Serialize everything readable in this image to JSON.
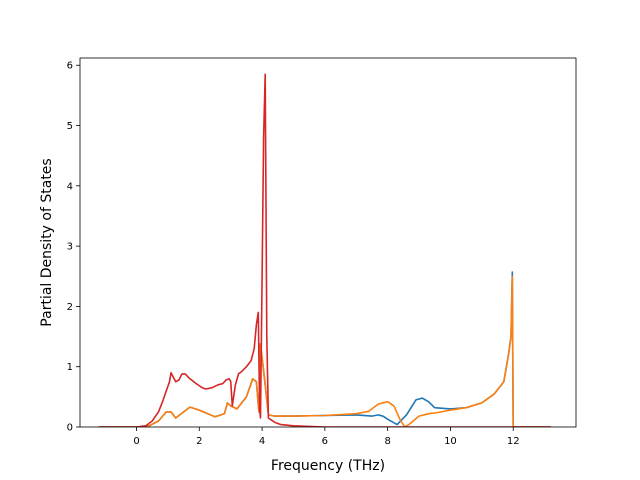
{
  "chart_data": {
    "type": "line",
    "title": "",
    "xlabel": "Frequency (THz)",
    "ylabel": "Partial Density of States",
    "xlim": [
      -1.8,
      14.0
    ],
    "ylim": [
      0,
      6.12
    ],
    "xticks": [
      0,
      2,
      4,
      6,
      8,
      10,
      12
    ],
    "yticks": [
      0,
      1,
      2,
      3,
      4,
      5,
      6
    ],
    "xtick_labels": [
      "0",
      "2",
      "4",
      "6",
      "8",
      "10",
      "12"
    ],
    "ytick_labels": [
      "0",
      "1",
      "2",
      "3",
      "4",
      "5",
      "6"
    ],
    "grid": false,
    "legend": "none",
    "series": [
      {
        "color": "#1f77b4",
        "x": [
          -1.2,
          0.0,
          0.4,
          0.7,
          0.95,
          1.1,
          1.25,
          1.5,
          1.7,
          2.0,
          2.5,
          2.8,
          2.9,
          3.0,
          3.2,
          3.5,
          3.7,
          3.82,
          3.9,
          3.95,
          4.1,
          4.2,
          4.4,
          5.0,
          6.0,
          7.0,
          7.5,
          7.7,
          7.85,
          8.0,
          8.3,
          8.6,
          8.9,
          9.1,
          9.3,
          9.5,
          10.0,
          10.5,
          11.0,
          11.4,
          11.7,
          11.85,
          11.93,
          11.97,
          12.0,
          13.2
        ],
        "y": [
          0,
          0,
          0.02,
          0.1,
          0.25,
          0.25,
          0.15,
          0.25,
          0.33,
          0.28,
          0.17,
          0.22,
          0.4,
          0.35,
          0.3,
          0.5,
          0.8,
          0.75,
          0.25,
          1.38,
          0.7,
          0.2,
          0.18,
          0.18,
          0.19,
          0.2,
          0.18,
          0.2,
          0.18,
          0.13,
          0.04,
          0.2,
          0.45,
          0.48,
          0.42,
          0.32,
          0.3,
          0.32,
          0.4,
          0.55,
          0.75,
          1.2,
          1.5,
          2.57,
          0.0,
          0.0
        ]
      },
      {
        "color": "#ff7f0e",
        "x": [
          -1.2,
          0.0,
          0.4,
          0.7,
          0.95,
          1.1,
          1.25,
          1.5,
          1.7,
          2.0,
          2.5,
          2.8,
          2.9,
          3.0,
          3.2,
          3.5,
          3.7,
          3.82,
          3.9,
          3.95,
          4.1,
          4.2,
          4.4,
          5.0,
          6.0,
          7.0,
          7.4,
          7.7,
          8.0,
          8.2,
          8.4,
          8.55,
          8.7,
          9.0,
          9.3,
          9.6,
          10.0,
          10.5,
          11.0,
          11.4,
          11.7,
          11.85,
          11.93,
          11.97,
          12.0,
          13.2
        ],
        "y": [
          0,
          0,
          0.02,
          0.1,
          0.25,
          0.25,
          0.15,
          0.25,
          0.33,
          0.28,
          0.17,
          0.22,
          0.4,
          0.35,
          0.3,
          0.5,
          0.8,
          0.75,
          0.25,
          1.38,
          0.7,
          0.2,
          0.18,
          0.18,
          0.19,
          0.22,
          0.26,
          0.38,
          0.42,
          0.35,
          0.12,
          0.0,
          0.05,
          0.18,
          0.22,
          0.24,
          0.28,
          0.32,
          0.4,
          0.55,
          0.75,
          1.2,
          1.5,
          2.5,
          0.0,
          0.0
        ]
      },
      {
        "color": "#d62728",
        "x": [
          -1.2,
          0.0,
          0.3,
          0.5,
          0.7,
          0.85,
          0.95,
          1.05,
          1.1,
          1.15,
          1.25,
          1.35,
          1.45,
          1.55,
          1.7,
          1.9,
          2.1,
          2.2,
          2.4,
          2.6,
          2.75,
          2.85,
          2.95,
          3.0,
          3.05,
          3.15,
          3.25,
          3.35,
          3.5,
          3.65,
          3.75,
          3.82,
          3.88,
          3.92,
          3.95,
          4.0,
          4.05,
          4.1,
          4.15,
          4.2,
          4.4,
          4.6,
          5.0,
          6.0,
          7.0,
          8.0,
          9.0,
          10.0,
          11.0,
          12.0,
          13.2
        ],
        "y": [
          0,
          0,
          0.02,
          0.1,
          0.25,
          0.45,
          0.6,
          0.75,
          0.9,
          0.85,
          0.75,
          0.78,
          0.88,
          0.88,
          0.8,
          0.72,
          0.65,
          0.63,
          0.65,
          0.7,
          0.72,
          0.78,
          0.8,
          0.76,
          0.35,
          0.7,
          0.88,
          0.92,
          1.0,
          1.1,
          1.3,
          1.7,
          1.9,
          0.3,
          0.15,
          2.5,
          4.8,
          5.85,
          1.5,
          0.15,
          0.08,
          0.04,
          0.02,
          0.0,
          0.0,
          0.0,
          0.0,
          0.0,
          0.0,
          0.0,
          0.0
        ]
      }
    ]
  }
}
